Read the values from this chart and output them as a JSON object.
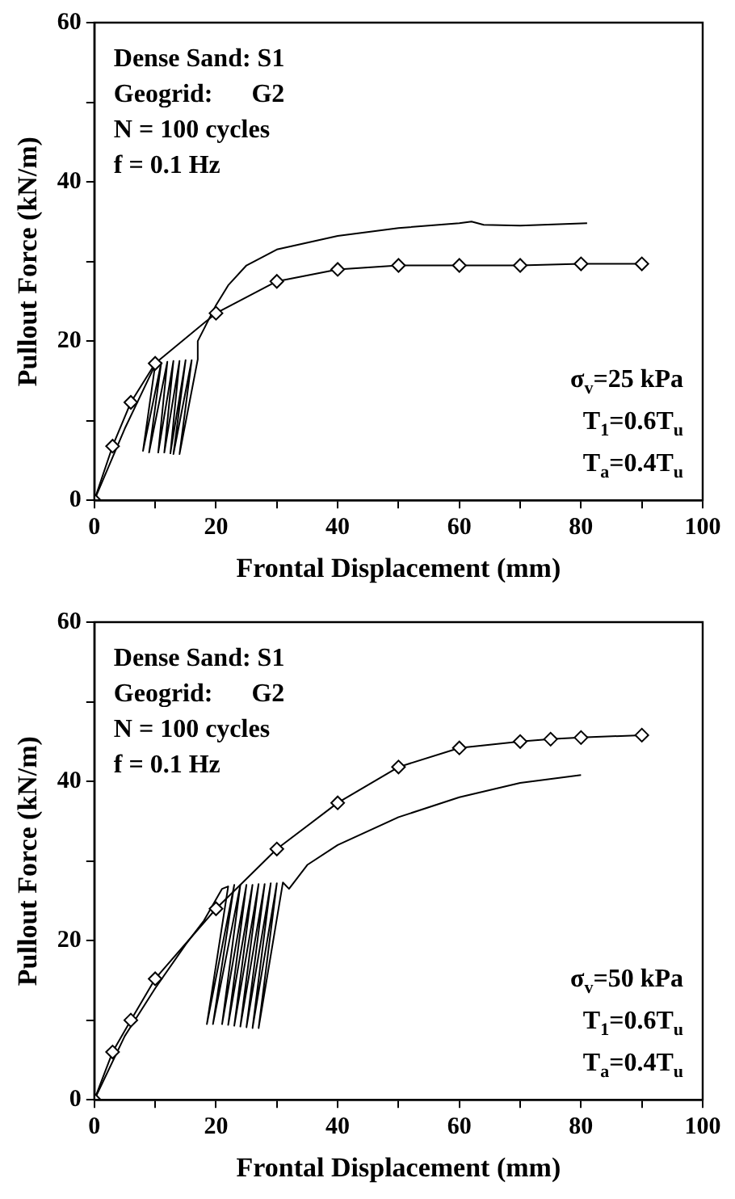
{
  "chart_data": [
    {
      "type": "line",
      "xlabel": "Frontal Displacement (mm)",
      "ylabel": "Pullout Force (kN/m)",
      "xlim": [
        0,
        100
      ],
      "ylim": [
        0,
        60
      ],
      "xticks": [
        0,
        {
          "value": 10,
          "label": null
        },
        20,
        {
          "value": 30,
          "label": null
        },
        40,
        {
          "value": 50,
          "label": null
        },
        60,
        {
          "value": 70,
          "label": null
        },
        80,
        {
          "value": 90,
          "label": null
        },
        100
      ],
      "yticks": [
        0,
        {
          "value": 10,
          "label": null
        },
        20,
        {
          "value": 30,
          "label": null
        },
        40,
        {
          "value": 50,
          "label": null
        },
        60
      ],
      "grid": false,
      "legend": false,
      "annotations": [
        "Dense Sand: S1",
        "Geogrid:      G2",
        "N = 100 cycles",
        "f = 0.1 Hz",
        "σ$_{v}$=25 kPa",
        "T$_{1}$=0.6T$_{u}$",
        "T$_{a}$=0.4T$_{u}$"
      ],
      "series": [
        {
          "color": "#000000",
          "marker": "diamond",
          "x": [
            0,
            3,
            6,
            10,
            20,
            30,
            40,
            50,
            60,
            70,
            80,
            90
          ],
          "values": [
            0,
            6.8,
            12.3,
            17.2,
            23.5,
            27.5,
            29,
            29.5,
            29.5,
            29.5,
            29.7,
            29.7
          ]
        },
        {
          "color": "#000000",
          "marker": "none",
          "x": [
            0,
            5,
            10,
            8,
            11,
            9,
            12,
            10.5,
            13,
            11.5,
            14,
            12.5,
            15,
            13,
            16,
            14,
            17,
            17,
            18,
            20,
            22,
            25,
            30,
            40,
            50,
            60,
            62,
            64,
            70,
            81
          ],
          "values": [
            0,
            9,
            17,
            6.2,
            17.3,
            6,
            17.4,
            6,
            17.5,
            6,
            17.5,
            5.9,
            17.6,
            5.8,
            17.6,
            5.8,
            17.7,
            20,
            21.5,
            24.5,
            27,
            29.5,
            31.5,
            33.2,
            34.2,
            34.8,
            35,
            34.6,
            34.5,
            34.8
          ]
        }
      ]
    },
    {
      "type": "line",
      "xlabel": "Frontal Displacement (mm)",
      "ylabel": "Pullout Force (kN/m)",
      "xlim": [
        0,
        100
      ],
      "ylim": [
        0,
        60
      ],
      "xticks": [
        0,
        {
          "value": 10,
          "label": null
        },
        20,
        {
          "value": 30,
          "label": null
        },
        40,
        {
          "value": 50,
          "label": null
        },
        60,
        {
          "value": 70,
          "label": null
        },
        80,
        {
          "value": 90,
          "label": null
        },
        100
      ],
      "yticks": [
        0,
        {
          "value": 10,
          "label": null
        },
        20,
        {
          "value": 30,
          "label": null
        },
        40,
        {
          "value": 50,
          "label": null
        },
        60
      ],
      "grid": false,
      "legend": false,
      "annotations": [
        "Dense Sand: S1",
        "Geogrid:      G2",
        "N = 100 cycles",
        "f = 0.1 Hz",
        "σ$_{v}$=50 kPa",
        "T$_{1}$=0.6T$_{u}$",
        "T$_{a}$=0.4T$_{u}$"
      ],
      "series": [
        {
          "color": "#000000",
          "marker": "diamond",
          "x": [
            0,
            3,
            6,
            10,
            20,
            30,
            40,
            50,
            60,
            70,
            75,
            80,
            90
          ],
          "values": [
            0,
            6,
            10,
            15.2,
            24,
            31.5,
            37.3,
            41.8,
            44.2,
            45,
            45.3,
            45.5,
            45.8
          ]
        },
        {
          "color": "#000000",
          "marker": "none",
          "x": [
            0,
            5,
            10,
            15,
            18,
            21,
            22,
            18.5,
            23,
            19.5,
            24,
            21,
            25,
            22,
            26,
            23,
            27,
            24,
            28,
            25,
            29,
            26,
            30,
            27,
            31,
            32,
            35,
            40,
            50,
            60,
            70,
            80
          ],
          "values": [
            0,
            8,
            14,
            19.5,
            22.5,
            26.5,
            26.8,
            9.5,
            27,
            9.5,
            27,
            9.5,
            27,
            9.4,
            27,
            9.3,
            27.1,
            9.2,
            27.1,
            9.1,
            27.2,
            9,
            27.2,
            9,
            27.3,
            26.5,
            29.5,
            32,
            35.5,
            38,
            39.8,
            40.8
          ]
        }
      ]
    }
  ]
}
